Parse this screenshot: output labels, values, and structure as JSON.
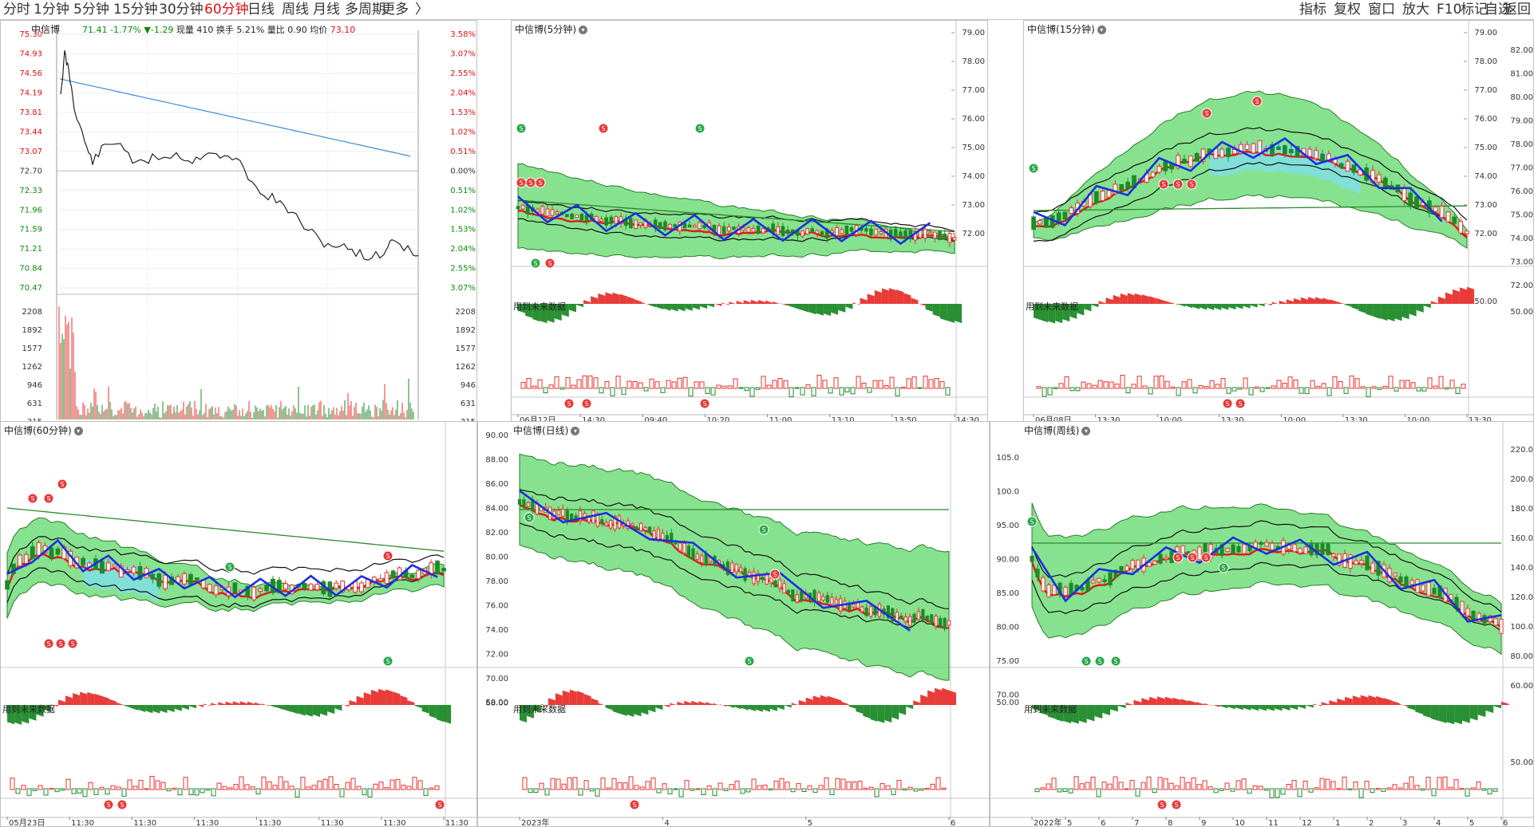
{
  "toolbar": {
    "periods": [
      "分时",
      "1分钟",
      "5分钟",
      "15分钟",
      "30分钟",
      "60分钟",
      "日线",
      "周线",
      "月线",
      "多周期",
      "更多"
    ],
    "active_period": "60分钟",
    "right_items": [
      "指标",
      "复权",
      "窗口",
      "放大",
      "F10",
      "标记",
      "自选",
      "返回"
    ]
  },
  "stock_name": "中信博",
  "intraday": {
    "title": "中信博",
    "price": "71.41",
    "pct": "-1.77%",
    "change": "▼-1.29",
    "vol_label": "现量",
    "vol_value": "410",
    "turnover_label": "换手",
    "turnover_value": "5.21%",
    "ratio_label": "量比",
    "ratio_value": "0.90",
    "avg_label": "均价",
    "avg_value": "73.10",
    "price_ticks": [
      "75.30",
      "74.93",
      "74.56",
      "74.19",
      "73.81",
      "73.44",
      "73.07",
      "72.70",
      "72.33",
      "71.96",
      "71.59",
      "71.21",
      "70.84",
      "70.47"
    ],
    "pct_ticks": [
      "3.58%",
      "3.07%",
      "2.55%",
      "2.04%",
      "1.53%",
      "1.02%",
      "0.51%",
      "0.00%",
      "0.51%",
      "1.02%",
      "1.53%",
      "2.04%",
      "2.55%",
      "3.07%"
    ],
    "vol_ticks": [
      "2208",
      "1892",
      "1577",
      "1262",
      "946",
      "631",
      "315"
    ]
  },
  "panels": {
    "p5": {
      "title": "中信博(5分钟)",
      "y_ticks": [
        "79.00",
        "78.00",
        "77.00",
        "76.00",
        "75.00",
        "74.00",
        "73.00",
        "72.00"
      ],
      "future": "用到未来数据",
      "x_ticks": [
        "06月12日",
        "14:30",
        "09:40",
        "10:20",
        "11:00",
        "13:10",
        "13:50",
        "14:30"
      ]
    },
    "p15": {
      "title": "中信博(15分钟)",
      "y_ticks": [
        "79.00",
        "78.00",
        "77.00",
        "76.00",
        "75.00",
        "74.00",
        "73.00",
        "72.00"
      ],
      "sub_tick": "50.00",
      "future": "用到未来数据",
      "x_ticks": [
        "06月08日",
        "13:30",
        "10:00",
        "13:30",
        "10:00",
        "13:30",
        "10:00",
        "13:30"
      ]
    },
    "pright": {
      "y_ticks": [
        "82.00",
        "81.00",
        "80.00",
        "79.00",
        "78.00",
        "77.00",
        "76.00",
        "75.00",
        "74.00",
        "73.00",
        "72.00"
      ],
      "sub_tick": "50.00"
    },
    "p60": {
      "title": "中信博(60分钟)",
      "future": "用到未来数据",
      "x_ticks": [
        "05月23日",
        "11:30",
        "11:30",
        "11:30",
        "11:30",
        "11:30",
        "11:30",
        "11:30"
      ]
    },
    "pday": {
      "title": "中信博(日线)",
      "y_ticks": [
        "90.00",
        "88.00",
        "86.00",
        "84.00",
        "82.00",
        "80.00",
        "78.00",
        "76.00",
        "74.00",
        "72.00",
        "70.00",
        "68.00"
      ],
      "sub_tick": "50.00",
      "future": "用到未来数据",
      "x_ticks": [
        "2023年",
        "4",
        "5",
        "6"
      ]
    },
    "pweek": {
      "title": "中信博(周线)",
      "y_ticks": [
        "105.0",
        "100.0",
        "95.00",
        "90.00",
        "85.00",
        "80.00",
        "75.00",
        "70.00"
      ],
      "sub_tick": "50.00",
      "future": "用到未来数据",
      "x_ticks": [
        "2022年",
        "5",
        "6",
        "7",
        "8",
        "9",
        "10",
        "11",
        "12",
        "1",
        "2",
        "3",
        "4",
        "5",
        "6"
      ]
    },
    "pfar": {
      "y_ticks": [
        "220.0",
        "200.0",
        "180.0",
        "160.0",
        "140.0",
        "120.0",
        "100.0",
        "80.00",
        "60.00"
      ],
      "sub_tick": "50.00"
    }
  },
  "colors": {
    "up": "#e8312e",
    "down": "#1e8a28",
    "blue": "#1a2fe0",
    "band_green": "#5fd86a",
    "band_cyan": "#7ee0e8",
    "avg_line": "#3a8ad8"
  }
}
